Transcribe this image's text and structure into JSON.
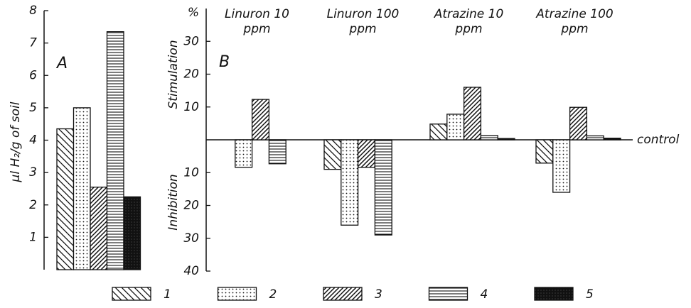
{
  "chart_data": [
    {
      "type": "bar",
      "panel_label": "A",
      "ylabel": "µl H₂/g of soil",
      "categories": [
        null
      ],
      "ylim": [
        0,
        8
      ],
      "yticks": [
        1,
        2,
        3,
        4,
        5,
        6,
        7,
        8
      ],
      "series": [
        {
          "name": "1",
          "pattern": "hatch-back",
          "values": [
            4.35
          ]
        },
        {
          "name": "2",
          "pattern": "dots",
          "values": [
            5.0
          ]
        },
        {
          "name": "3",
          "pattern": "hatch-fwd",
          "values": [
            2.55
          ]
        },
        {
          "name": "4",
          "pattern": "horiz",
          "values": [
            7.35
          ]
        },
        {
          "name": "5",
          "pattern": "solid",
          "values": [
            2.25
          ]
        }
      ]
    },
    {
      "type": "bar",
      "panel_label": "B",
      "y_unit": "%",
      "upper_label": "Stimulation",
      "lower_label": "Inhibition",
      "baseline_label": "control",
      "categories": [
        "Linuron 10 ppm",
        "Linuron 100 ppm",
        "Atrazine 10 ppm",
        "Atrazine 100 ppm"
      ],
      "ylim": [
        -40,
        40
      ],
      "yticks": [
        {
          "value": -40,
          "label": "40"
        },
        {
          "value": -30,
          "label": "30"
        },
        {
          "value": -20,
          "label": "20"
        },
        {
          "value": -10,
          "label": "10"
        },
        10,
        20,
        30
      ],
      "series": [
        {
          "pattern": "hatch-back",
          "values": [
            0,
            -9,
            4.8,
            -7.1
          ]
        },
        {
          "pattern": "dots",
          "values": [
            -8.4,
            -26,
            7.8,
            -16
          ]
        },
        {
          "pattern": "hatch-fwd",
          "values": [
            12.3,
            -8.4,
            16,
            9.9
          ]
        },
        {
          "pattern": "horiz",
          "values": [
            -7.3,
            -29,
            1.3,
            1.2
          ]
        },
        {
          "pattern": "solid",
          "values": [
            0,
            0,
            0.4,
            0.5
          ]
        }
      ]
    }
  ]
}
